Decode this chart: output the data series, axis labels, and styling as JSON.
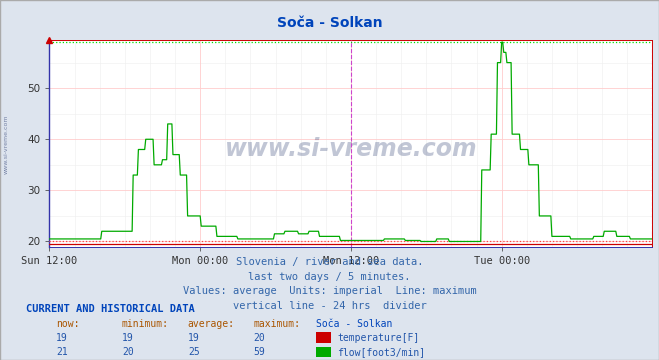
{
  "title": "Soča - Solkan",
  "bg_color": "#dde4ee",
  "plot_bg_color": "#ffffff",
  "grid_color_major_y": "#ffcccc",
  "grid_color_major_x": "#ffcccc",
  "grid_color_minor": "#eeeeee",
  "xlim": [
    0,
    576
  ],
  "ylim": [
    19.0,
    59.5
  ],
  "yticks": [
    20,
    30,
    40,
    50
  ],
  "xtick_labels": [
    "Sun 12:00",
    "Mon 00:00",
    "Mon 12:00",
    "Tue 00:00"
  ],
  "xtick_positions": [
    0,
    144,
    288,
    432
  ],
  "vertical_line_x": 288,
  "vertical_line_color": "#cc44cc",
  "right_vline_x": 576,
  "temp_color": "#cc0000",
  "flow_color": "#00aa00",
  "temp_max_line": 20.0,
  "flow_max_line": 59.0,
  "temp_max_color": "#ff4444",
  "flow_max_color": "#00dd00",
  "watermark_text": "www.si-vreme.com",
  "subtitle_lines": [
    "Slovenia / river and sea data.",
    "last two days / 5 minutes.",
    "Values: average  Units: imperial  Line: maximum",
    "vertical line - 24 hrs  divider"
  ],
  "table_header": "CURRENT AND HISTORICAL DATA",
  "col_headers": [
    "now:",
    "minimum:",
    "average:",
    "maximum:",
    "Soča - Solkan"
  ],
  "temp_row": [
    "19",
    "19",
    "19",
    "20",
    "temperature[F]"
  ],
  "flow_row": [
    "21",
    "20",
    "25",
    "59",
    "flow[foot3/min]"
  ],
  "title_color": "#0044bb",
  "subtitle_color": "#3366aa",
  "table_header_color": "#0044bb",
  "table_data_color": "#2255aa",
  "col_header_color": "#aa5500",
  "station_name_color": "#0044bb",
  "temp_data_y_seed": 19.5,
  "flow_data_segments": [
    {
      "x_start": 0,
      "x_end": 50,
      "y": 20.5
    },
    {
      "x_start": 50,
      "x_end": 80,
      "y": 22
    },
    {
      "x_start": 80,
      "x_end": 85,
      "y": 33
    },
    {
      "x_start": 85,
      "x_end": 92,
      "y": 38
    },
    {
      "x_start": 92,
      "x_end": 100,
      "y": 40
    },
    {
      "x_start": 100,
      "x_end": 108,
      "y": 35
    },
    {
      "x_start": 108,
      "x_end": 113,
      "y": 36
    },
    {
      "x_start": 113,
      "x_end": 118,
      "y": 43
    },
    {
      "x_start": 118,
      "x_end": 125,
      "y": 37
    },
    {
      "x_start": 125,
      "x_end": 132,
      "y": 33
    },
    {
      "x_start": 132,
      "x_end": 145,
      "y": 25
    },
    {
      "x_start": 145,
      "x_end": 160,
      "y": 23
    },
    {
      "x_start": 160,
      "x_end": 180,
      "y": 21
    },
    {
      "x_start": 180,
      "x_end": 215,
      "y": 20.5
    },
    {
      "x_start": 215,
      "x_end": 225,
      "y": 21.5
    },
    {
      "x_start": 225,
      "x_end": 238,
      "y": 22
    },
    {
      "x_start": 238,
      "x_end": 248,
      "y": 21.5
    },
    {
      "x_start": 248,
      "x_end": 258,
      "y": 22
    },
    {
      "x_start": 258,
      "x_end": 278,
      "y": 21
    },
    {
      "x_start": 278,
      "x_end": 320,
      "y": 20.2
    },
    {
      "x_start": 320,
      "x_end": 340,
      "y": 20.5
    },
    {
      "x_start": 340,
      "x_end": 355,
      "y": 20.2
    },
    {
      "x_start": 355,
      "x_end": 370,
      "y": 20
    },
    {
      "x_start": 370,
      "x_end": 382,
      "y": 20.5
    },
    {
      "x_start": 382,
      "x_end": 413,
      "y": 20
    },
    {
      "x_start": 413,
      "x_end": 422,
      "y": 34
    },
    {
      "x_start": 422,
      "x_end": 428,
      "y": 41
    },
    {
      "x_start": 428,
      "x_end": 432,
      "y": 55
    },
    {
      "x_start": 432,
      "x_end": 434,
      "y": 59
    },
    {
      "x_start": 434,
      "x_end": 437,
      "y": 57
    },
    {
      "x_start": 437,
      "x_end": 442,
      "y": 55
    },
    {
      "x_start": 442,
      "x_end": 450,
      "y": 41
    },
    {
      "x_start": 450,
      "x_end": 458,
      "y": 38
    },
    {
      "x_start": 458,
      "x_end": 468,
      "y": 35
    },
    {
      "x_start": 468,
      "x_end": 480,
      "y": 25
    },
    {
      "x_start": 480,
      "x_end": 498,
      "y": 21
    },
    {
      "x_start": 498,
      "x_end": 520,
      "y": 20.5
    },
    {
      "x_start": 520,
      "x_end": 530,
      "y": 21
    },
    {
      "x_start": 530,
      "x_end": 542,
      "y": 22
    },
    {
      "x_start": 542,
      "x_end": 555,
      "y": 21
    },
    {
      "x_start": 555,
      "x_end": 576,
      "y": 20.5
    }
  ]
}
